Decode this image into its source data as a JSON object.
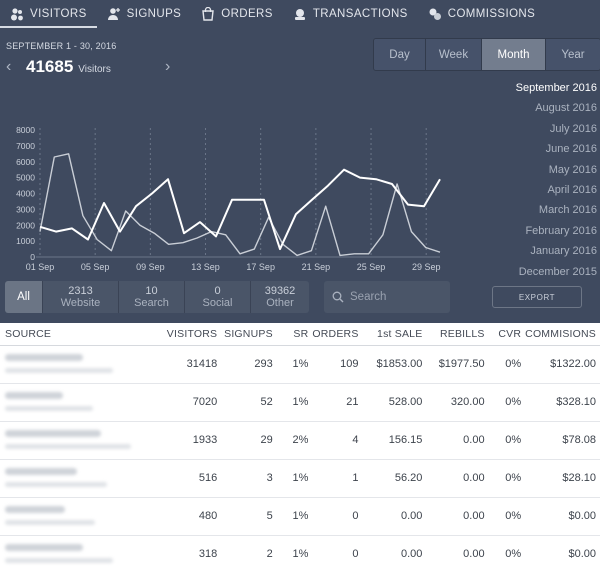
{
  "nav": {
    "tabs": [
      {
        "label": "VISITORS",
        "icon": "people-icon"
      },
      {
        "label": "SIGNUPS",
        "icon": "user-add-icon"
      },
      {
        "label": "ORDERS",
        "icon": "orders-icon"
      },
      {
        "label": "TRANSACTIONS",
        "icon": "transactions-icon"
      },
      {
        "label": "COMMISSIONS",
        "icon": "coins-icon"
      }
    ],
    "active": "VISITORS"
  },
  "summary": {
    "date_range": "SEPTEMBER 1 - 30, 2016",
    "count": "41685",
    "count_label": "Visitors"
  },
  "period": {
    "options": [
      "Day",
      "Week",
      "Month",
      "Year"
    ],
    "selected": "Month"
  },
  "months": [
    "September 2016",
    "August 2016",
    "July 2016",
    "June 2016",
    "May 2016",
    "April 2016",
    "March 2016",
    "February 2016",
    "January 2016",
    "December 2015"
  ],
  "chart_data": {
    "type": "line",
    "x_labels": [
      "01 Sep",
      "05 Sep",
      "09 Sep",
      "13 Sep",
      "17 Sep",
      "21 Sep",
      "25 Sep",
      "29 Sep"
    ],
    "y_ticks": [
      0,
      1000,
      2000,
      3000,
      4000,
      5000,
      6000,
      7000,
      8000
    ],
    "ylim": [
      0,
      8000
    ],
    "xlim": [
      1,
      30
    ],
    "grid": "vertical dashed",
    "series": [
      {
        "values": [
          1900,
          1600,
          1800,
          1100,
          3400,
          1600,
          3200,
          4000,
          4900,
          1500,
          2200,
          1300,
          3600,
          3600,
          3600,
          500,
          2700,
          3600,
          4500,
          5500,
          5000,
          4900,
          4600,
          3300,
          3200,
          4900
        ],
        "color": "#ffffff"
      },
      {
        "values": [
          1600,
          6300,
          6500,
          2600,
          1100,
          400,
          2900,
          2000,
          1500,
          800,
          900,
          1200,
          1600,
          1400,
          200,
          500,
          2500,
          800,
          100,
          400,
          3200,
          100,
          200,
          200,
          1400,
          4600,
          1600,
          600,
          300
        ],
        "color": "#c9ced6"
      }
    ]
  },
  "filters": [
    {
      "count": "",
      "label": "All"
    },
    {
      "count": "2313",
      "label": "Website"
    },
    {
      "count": "10",
      "label": "Search"
    },
    {
      "count": "0",
      "label": "Social"
    },
    {
      "count": "39362",
      "label": "Other"
    }
  ],
  "search": {
    "placeholder": "Search"
  },
  "export_label": "EXPORT",
  "table": {
    "columns": [
      "SOURCE",
      "VISITORS",
      "SIGNUPS",
      "SR",
      "ORDERS",
      "1st SALE",
      "REBILLS",
      "CVR",
      "COMMISIONS"
    ],
    "rows": [
      {
        "visitors": "31418",
        "signups": "293",
        "sr": "1%",
        "orders": "109",
        "first_sale": "$1853.00",
        "rebills": "$1977.50",
        "cvr": "0%",
        "commissions": "$1322.00"
      },
      {
        "visitors": "7020",
        "signups": "52",
        "sr": "1%",
        "orders": "21",
        "first_sale": "528.00",
        "rebills": "320.00",
        "cvr": "0%",
        "commissions": "$328.10"
      },
      {
        "visitors": "1933",
        "signups": "29",
        "sr": "2%",
        "orders": "4",
        "first_sale": "156.15",
        "rebills": "0.00",
        "cvr": "0%",
        "commissions": "$78.08"
      },
      {
        "visitors": "516",
        "signups": "3",
        "sr": "1%",
        "orders": "1",
        "first_sale": "56.20",
        "rebills": "0.00",
        "cvr": "0%",
        "commissions": "$28.10"
      },
      {
        "visitors": "480",
        "signups": "5",
        "sr": "1%",
        "orders": "0",
        "first_sale": "0.00",
        "rebills": "0.00",
        "cvr": "0%",
        "commissions": "$0.00"
      },
      {
        "visitors": "318",
        "signups": "2",
        "sr": "1%",
        "orders": "0",
        "first_sale": "0.00",
        "rebills": "0.00",
        "cvr": "0%",
        "commissions": "$0.00"
      }
    ]
  }
}
